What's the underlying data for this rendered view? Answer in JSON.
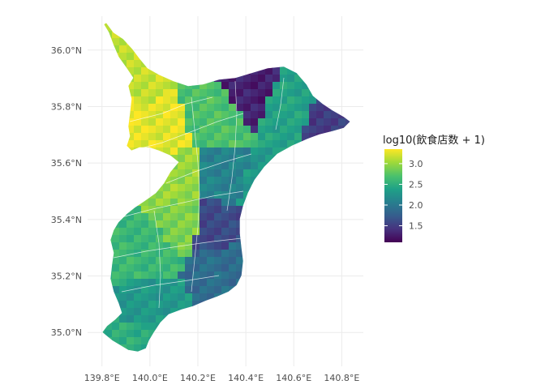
{
  "chart_data": {
    "type": "choropleth-map",
    "subject": "Chiba Prefecture municipalities",
    "x_axis": {
      "range": [
        139.74,
        140.89
      ],
      "ticks": [
        139.8,
        140.0,
        140.2,
        140.4,
        140.6,
        140.8
      ],
      "tick_labels": [
        "139.8°E",
        "140.0°E",
        "140.2°E",
        "140.4°E",
        "140.6°E",
        "140.8°E"
      ]
    },
    "y_axis": {
      "range": [
        34.88,
        36.12
      ],
      "ticks": [
        35.0,
        35.2,
        35.4,
        35.6,
        35.8,
        36.0
      ],
      "tick_labels": [
        "35.0°N",
        "35.2°N",
        "35.4°N",
        "35.6°N",
        "35.8°N",
        "36.0°N"
      ]
    },
    "grid": true,
    "legend": {
      "title": "log10(飲食店数 + 1)",
      "placement": "right",
      "type": "continuous colorbar",
      "palette": "viridis",
      "range": [
        1.1,
        3.35
      ],
      "ticks": [
        1.5,
        2.0,
        2.5,
        3.0
      ],
      "tick_labels": [
        "1.5",
        "2.0",
        "2.5",
        "3.0"
      ]
    },
    "regions": [
      {
        "lon": 139.87,
        "lat": 35.78,
        "value": 3.3
      },
      {
        "lon": 140.0,
        "lat": 35.72,
        "value": 3.25
      },
      {
        "lon": 139.9,
        "lat": 35.9,
        "value": 3.15
      },
      {
        "lon": 140.1,
        "lat": 35.54,
        "value": 3.0
      },
      {
        "lon": 140.12,
        "lat": 35.42,
        "value": 2.9
      },
      {
        "lon": 140.28,
        "lat": 35.78,
        "value": 2.7
      },
      {
        "lon": 140.55,
        "lat": 35.8,
        "value": 2.4
      },
      {
        "lon": 140.3,
        "lat": 35.55,
        "value": 2.1
      },
      {
        "lon": 140.45,
        "lat": 35.52,
        "value": 2.3
      },
      {
        "lon": 140.25,
        "lat": 35.4,
        "value": 1.6
      },
      {
        "lon": 140.3,
        "lat": 35.22,
        "value": 1.9
      },
      {
        "lon": 139.95,
        "lat": 35.3,
        "value": 2.6
      },
      {
        "lon": 139.98,
        "lat": 35.1,
        "value": 2.3
      },
      {
        "lon": 139.95,
        "lat": 34.98,
        "value": 2.5
      },
      {
        "lon": 140.4,
        "lat": 35.85,
        "value": 1.3
      },
      {
        "lon": 140.74,
        "lat": 35.75,
        "value": 1.5
      }
    ]
  }
}
